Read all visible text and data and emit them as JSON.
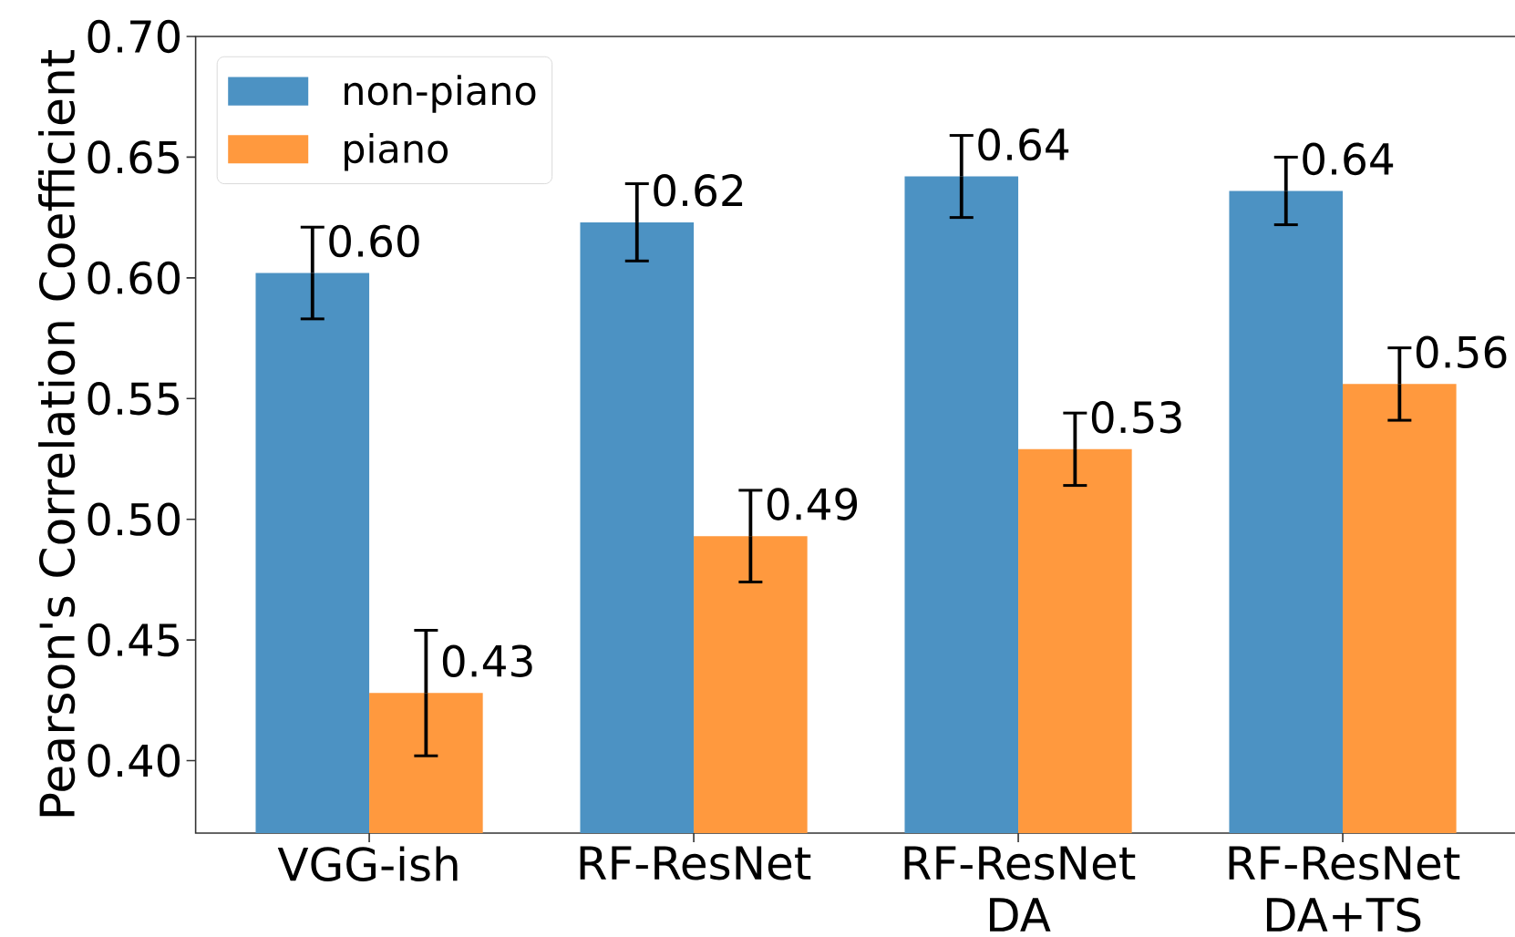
{
  "chart_data": {
    "type": "bar",
    "ylabel": "Pearson's Correlation Coefficient",
    "categories": [
      "VGG-ish",
      "RF-ResNet",
      "RF-ResNet DA",
      "RF-ResNet DA+TS"
    ],
    "series": [
      {
        "name": "non-piano",
        "color": "#4c92c3",
        "values": [
          0.602,
          0.623,
          0.642,
          0.636
        ],
        "errors": [
          0.019,
          0.016,
          0.017,
          0.014
        ],
        "value_labels": [
          "0.60",
          "0.62",
          "0.64",
          "0.64"
        ]
      },
      {
        "name": "piano",
        "color": "#ff993e",
        "values": [
          0.428,
          0.493,
          0.529,
          0.556
        ],
        "errors": [
          0.026,
          0.019,
          0.015,
          0.015
        ],
        "value_labels": [
          "0.43",
          "0.49",
          "0.53",
          "0.56"
        ]
      }
    ],
    "ylim": [
      0.37,
      0.7
    ],
    "yticks": [
      {
        "value": 0.4,
        "label": "0.40"
      },
      {
        "value": 0.45,
        "label": "0.45"
      },
      {
        "value": 0.5,
        "label": "0.50"
      },
      {
        "value": 0.55,
        "label": "0.55"
      },
      {
        "value": 0.6,
        "label": "0.60"
      },
      {
        "value": 0.65,
        "label": "0.65"
      },
      {
        "value": 0.7,
        "label": "0.70"
      }
    ],
    "legend": "top left"
  }
}
